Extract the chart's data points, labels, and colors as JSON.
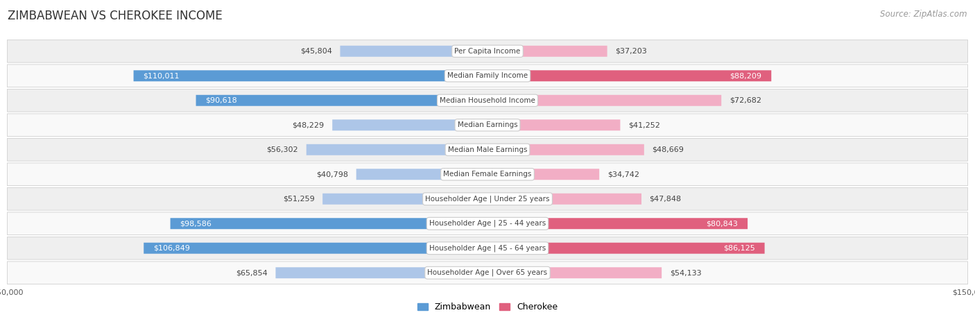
{
  "title": "ZIMBABWEAN VS CHEROKEE INCOME",
  "source": "Source: ZipAtlas.com",
  "categories": [
    "Per Capita Income",
    "Median Family Income",
    "Median Household Income",
    "Median Earnings",
    "Median Male Earnings",
    "Median Female Earnings",
    "Householder Age | Under 25 years",
    "Householder Age | 25 - 44 years",
    "Householder Age | 45 - 64 years",
    "Householder Age | Over 65 years"
  ],
  "zimbabwean_values": [
    45804,
    110011,
    90618,
    48229,
    56302,
    40798,
    51259,
    98586,
    106849,
    65854
  ],
  "cherokee_values": [
    37203,
    88209,
    72682,
    41252,
    48669,
    34742,
    47848,
    80843,
    86125,
    54133
  ],
  "zimbabwean_labels": [
    "$45,804",
    "$110,011",
    "$90,618",
    "$48,229",
    "$56,302",
    "$40,798",
    "$51,259",
    "$98,586",
    "$106,849",
    "$65,854"
  ],
  "cherokee_labels": [
    "$37,203",
    "$88,209",
    "$72,682",
    "$41,252",
    "$48,669",
    "$34,742",
    "$47,848",
    "$80,843",
    "$86,125",
    "$54,133"
  ],
  "zimbabwean_color_light": "#adc6e8",
  "zimbabwean_color_dark": "#5b9bd5",
  "cherokee_color_light": "#f2aec5",
  "cherokee_color_dark": "#e0607e",
  "max_value": 150000,
  "bg_row_even": "#efefef",
  "bg_row_odd": "#f9f9f9",
  "border_color": "#d0d0d0",
  "label_threshold_zim": 75000,
  "label_threshold_cher": 75000,
  "title_fontsize": 12,
  "source_fontsize": 8.5,
  "bar_label_fontsize": 8,
  "category_fontsize": 7.5,
  "axis_label_fontsize": 8
}
